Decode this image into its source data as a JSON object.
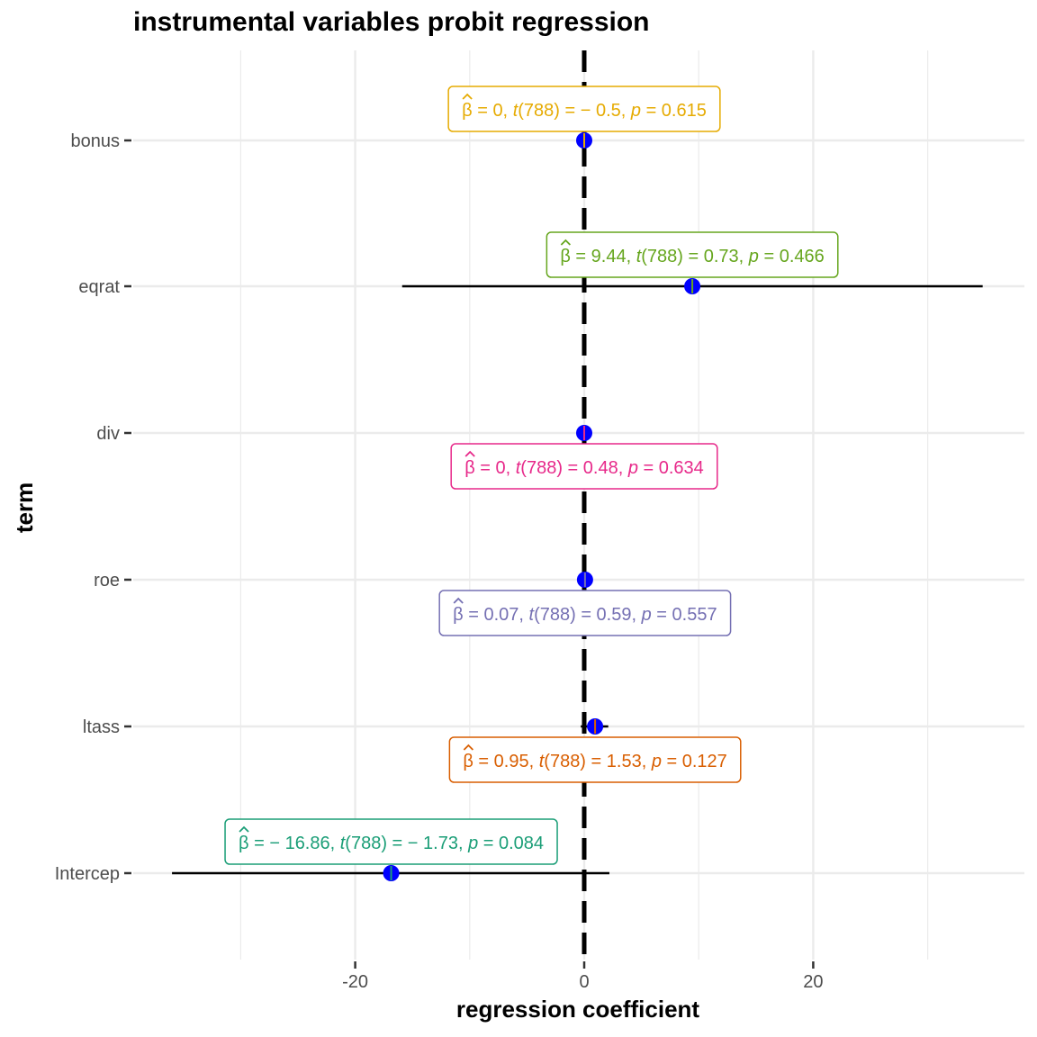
{
  "chart_data": {
    "type": "forest",
    "title": "instrumental variables probit regression",
    "xlabel": "regression coefficient",
    "ylabel": "term",
    "xlim": [
      -33.5,
      34.8
    ],
    "xticks": [
      -20,
      0,
      20
    ],
    "xtick_labels": [
      "-20",
      "0",
      "20"
    ],
    "reference_line_x": 0,
    "grid": true,
    "point_color": "#0000ff",
    "terms": [
      {
        "name": "bonus",
        "estimate": 0.0,
        "conf_low": -0.1,
        "conf_high": 0.1,
        "label": {
          "beta": "0",
          "df": "788",
          "t": "− 0.5",
          "p": "0.615"
        },
        "color": "#e6ab02",
        "label_pos": "above"
      },
      {
        "name": "eqrat",
        "estimate": 9.44,
        "conf_low": -15.9,
        "conf_high": 34.8,
        "label": {
          "beta": "9.44",
          "df": "788",
          "t": "0.73",
          "p": "0.466"
        },
        "color": "#66a61e",
        "label_pos": "above"
      },
      {
        "name": "div",
        "estimate": 0.0,
        "conf_low": -0.1,
        "conf_high": 0.1,
        "label": {
          "beta": "0",
          "df": "788",
          "t": "0.48",
          "p": "0.634"
        },
        "color": "#e7298a",
        "label_pos": "below"
      },
      {
        "name": "roe",
        "estimate": 0.07,
        "conf_low": -0.1,
        "conf_high": 0.2,
        "label": {
          "beta": "0.07",
          "df": "788",
          "t": "0.59",
          "p": "0.557"
        },
        "color": "#7570b3",
        "label_pos": "below"
      },
      {
        "name": "ltass",
        "estimate": 0.95,
        "conf_low": -0.3,
        "conf_high": 2.1,
        "label": {
          "beta": "0.95",
          "df": "788",
          "t": "1.53",
          "p": "0.127"
        },
        "color": "#d95f02",
        "label_pos": "below"
      },
      {
        "name": "Intercep",
        "estimate": -16.86,
        "conf_low": -36.0,
        "conf_high": 2.2,
        "label": {
          "beta": "− 16.86",
          "df": "788",
          "t": "− 1.73",
          "p": "0.084"
        },
        "color": "#1b9e77",
        "label_pos": "above"
      }
    ]
  }
}
